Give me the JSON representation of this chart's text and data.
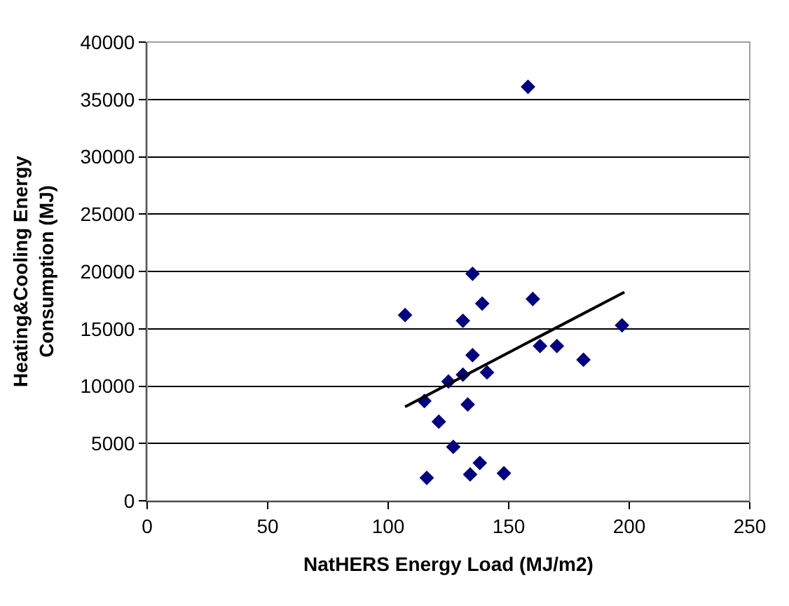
{
  "chart_data": {
    "type": "scatter",
    "xlabel": "NatHERS Energy Load (MJ/m2)",
    "ylabel": "Heating&Cooling Energy Consumption (MJ)",
    "xlim": [
      0,
      250
    ],
    "xticks": [
      0,
      50,
      100,
      150,
      200,
      250
    ],
    "ylim": [
      0,
      40000
    ],
    "yticks": [
      0,
      5000,
      10000,
      15000,
      20000,
      25000,
      30000,
      35000,
      40000
    ],
    "grid": "y",
    "legend": false,
    "series": [
      {
        "color": "#000080",
        "marker": "diamond",
        "x": [
          107,
          135,
          139,
          160,
          131,
          197,
          135,
          163,
          170,
          181,
          141,
          131,
          125,
          115,
          133,
          121,
          127,
          138,
          134,
          148,
          116,
          158
        ],
        "values": [
          16200,
          19800,
          17200,
          17600,
          15700,
          15300,
          12700,
          13500,
          13500,
          12300,
          11200,
          11000,
          10400,
          8700,
          8400,
          6900,
          4700,
          3300,
          2300,
          2400,
          2000,
          36100
        ]
      },
      {
        "type": "line",
        "color": "#000000",
        "x": [
          107,
          198
        ],
        "values": [
          8200,
          18200
        ]
      }
    ]
  }
}
